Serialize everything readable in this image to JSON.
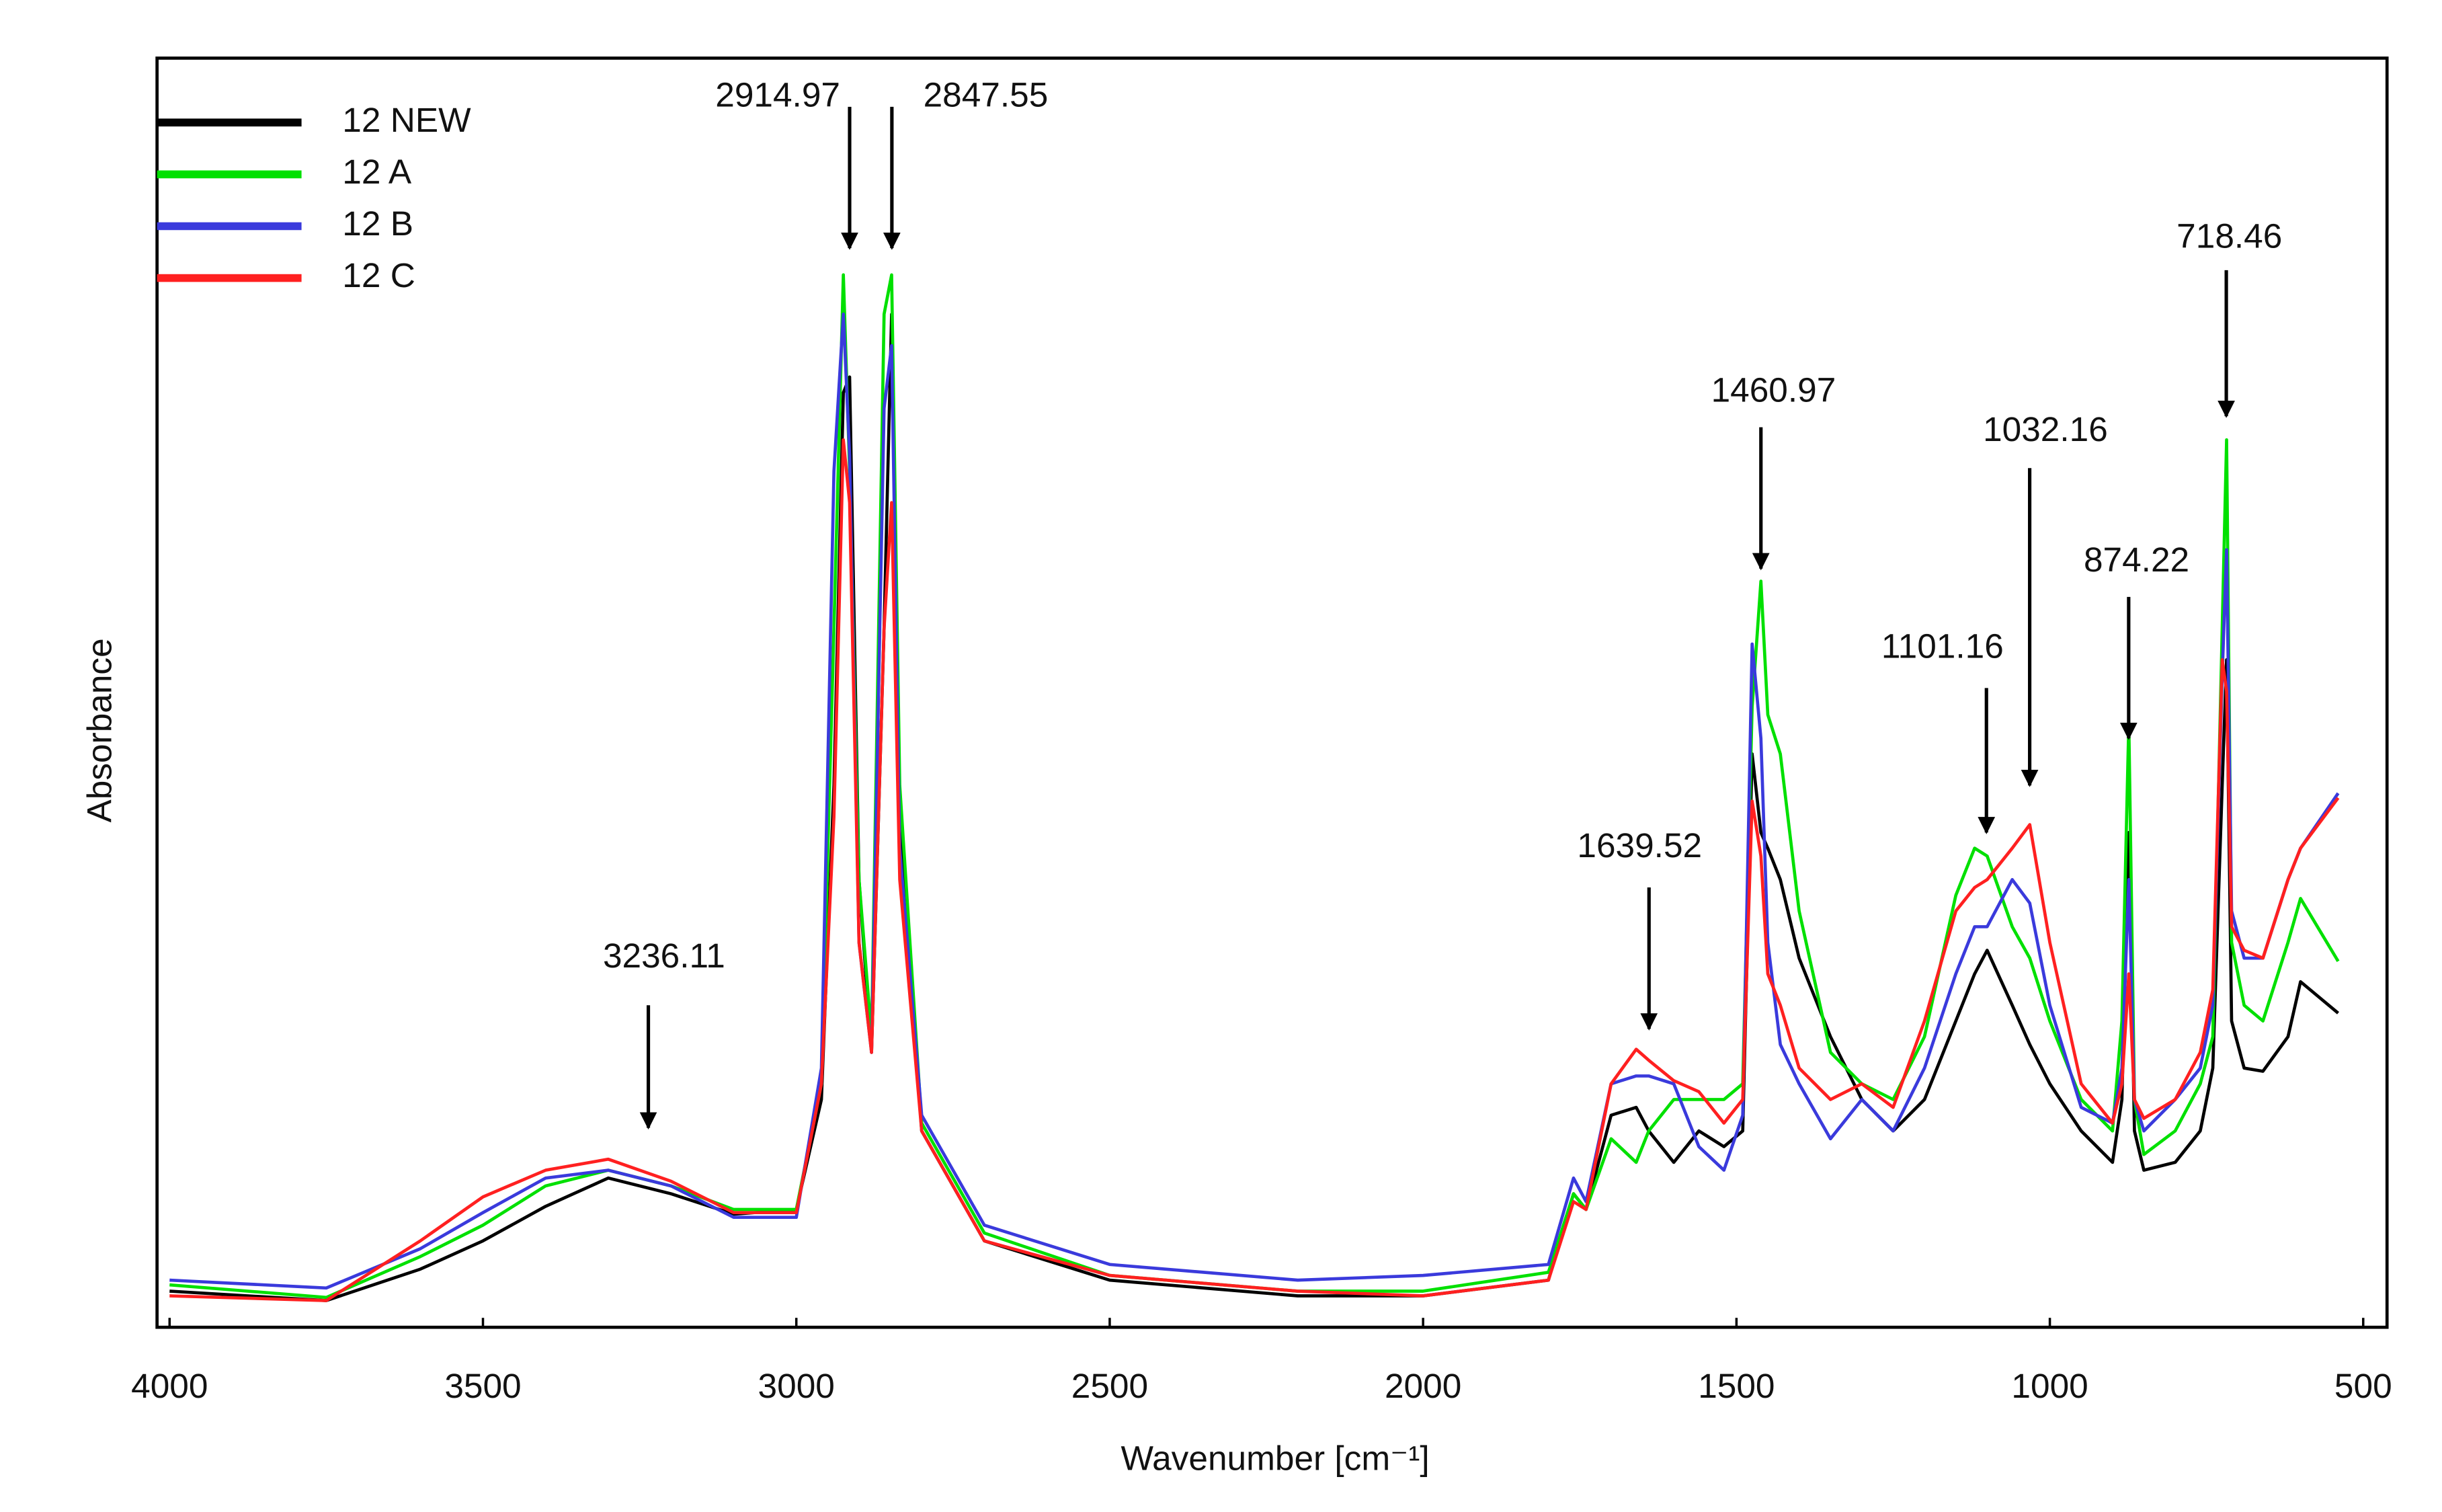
{
  "chart_data": {
    "type": "line",
    "x_label": "Wavenumber [cm⁻¹]",
    "y_label": "Absorbance",
    "xlim": [
      4020,
      462
    ],
    "ylim": [
      0,
      808
    ],
    "xticks": [
      4000,
      3500,
      3000,
      2500,
      2000,
      1500,
      1000,
      500
    ],
    "legend": "upper left",
    "x": [
      4000,
      3750,
      3600,
      3500,
      3400,
      3300,
      3200,
      3100,
      3000,
      2960,
      2940,
      2925,
      2915,
      2900,
      2880,
      2860,
      2848,
      2835,
      2800,
      2700,
      2500,
      2200,
      2000,
      1800,
      1760,
      1740,
      1700,
      1660,
      1640,
      1600,
      1560,
      1520,
      1490,
      1475,
      1461,
      1450,
      1430,
      1400,
      1350,
      1300,
      1250,
      1200,
      1150,
      1120,
      1100,
      1060,
      1032,
      1000,
      950,
      900,
      885,
      874,
      865,
      850,
      800,
      760,
      740,
      725,
      718,
      710,
      690,
      660,
      620,
      600,
      540
    ],
    "series": [
      {
        "name": "12 NEW",
        "color": "#000000",
        "values": [
          23,
          17,
          37,
          55,
          77,
          95,
          85,
          72,
          75,
          145,
          345,
          595,
          605,
          285,
          175,
          445,
          645,
          325,
          125,
          55,
          30,
          20,
          20,
          30,
          85,
          75,
          135,
          140,
          125,
          105,
          125,
          115,
          125,
          365,
          315,
          305,
          285,
          235,
          185,
          145,
          125,
          145,
          195,
          225,
          240,
          205,
          180,
          155,
          125,
          105,
          145,
          315,
          125,
          100,
          105,
          125,
          165,
          345,
          425,
          195,
          165,
          163,
          185,
          220,
          200
        ]
      },
      {
        "name": "12 A",
        "color": "#00e000",
        "values": [
          27,
          19,
          45,
          65,
          90,
          100,
          90,
          75,
          75,
          155,
          445,
          670,
          545,
          285,
          185,
          645,
          670,
          345,
          130,
          60,
          33,
          23,
          23,
          35,
          85,
          75,
          120,
          105,
          125,
          145,
          145,
          145,
          155,
          395,
          475,
          390,
          365,
          265,
          175,
          155,
          145,
          185,
          275,
          305,
          300,
          255,
          235,
          195,
          145,
          125,
          195,
          385,
          145,
          110,
          125,
          155,
          185,
          445,
          565,
          245,
          205,
          195,
          245,
          273,
          233
        ]
      },
      {
        "name": "12 B",
        "color": "#3a3adc",
        "values": [
          30,
          25,
          50,
          73,
          95,
          100,
          90,
          70,
          70,
          165,
          545,
          645,
          555,
          245,
          175,
          585,
          625,
          305,
          135,
          65,
          40,
          30,
          33,
          40,
          95,
          80,
          155,
          160,
          160,
          155,
          115,
          100,
          135,
          435,
          375,
          245,
          180,
          155,
          120,
          145,
          125,
          165,
          225,
          255,
          255,
          285,
          270,
          205,
          140,
          130,
          165,
          285,
          145,
          125,
          145,
          165,
          205,
          415,
          495,
          265,
          235,
          235,
          285,
          305,
          340
        ]
      },
      {
        "name": "12 C",
        "color": "#ff2020",
        "values": [
          20,
          17,
          55,
          83,
          100,
          107,
          93,
          73,
          73,
          155,
          325,
          565,
          525,
          245,
          175,
          445,
          525,
          285,
          125,
          55,
          33,
          23,
          20,
          30,
          80,
          75,
          155,
          177,
          170,
          157,
          150,
          130,
          145,
          335,
          300,
          225,
          205,
          165,
          145,
          155,
          140,
          195,
          265,
          280,
          285,
          305,
          320,
          245,
          155,
          130,
          155,
          225,
          145,
          133,
          145,
          175,
          215,
          425,
          405,
          255,
          240,
          235,
          285,
          305,
          337
        ]
      }
    ],
    "peak_labels": [
      3236.11,
      2914.97,
      2847.55,
      1639.52,
      1460.97,
      1101.16,
      1032.16,
      874.22,
      718.46
    ]
  }
}
